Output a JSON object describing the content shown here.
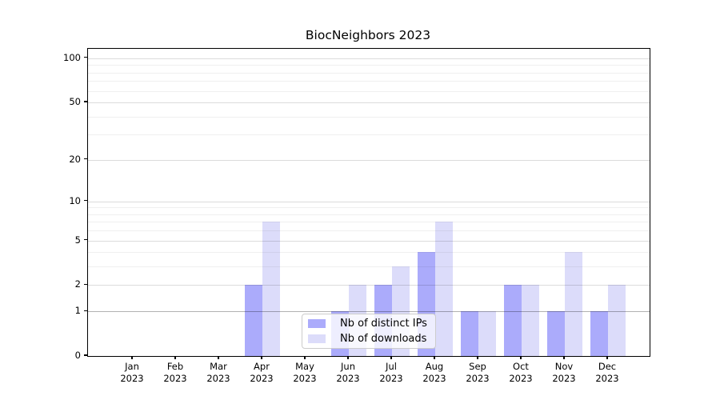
{
  "title": "BiocNeighbors 2023",
  "chart_data": {
    "type": "bar",
    "title": "BiocNeighbors 2023",
    "scale": "log1p",
    "categories": [
      "Jan 2023",
      "Feb 2023",
      "Mar 2023",
      "Apr 2023",
      "May 2023",
      "Jun 2023",
      "Jul 2023",
      "Aug 2023",
      "Sep 2023",
      "Oct 2023",
      "Nov 2023",
      "Dec 2023"
    ],
    "x_tick_line1": [
      "Jan",
      "Feb",
      "Mar",
      "Apr",
      "May",
      "Jun",
      "Jul",
      "Aug",
      "Sep",
      "Oct",
      "Nov",
      "Dec"
    ],
    "x_tick_line2": [
      "2023",
      "2023",
      "2023",
      "2023",
      "2023",
      "2023",
      "2023",
      "2023",
      "2023",
      "2023",
      "2023",
      "2023"
    ],
    "series": [
      {
        "name": "Nb of distinct IPs",
        "color": "#ababfb",
        "values": [
          0,
          0,
          0,
          2,
          0,
          1,
          2,
          4,
          1,
          2,
          1,
          1
        ]
      },
      {
        "name": "Nb of downloads",
        "color": "#dcdcfa",
        "values": [
          0,
          0,
          0,
          7,
          0,
          2,
          3,
          7,
          1,
          2,
          4,
          2
        ]
      }
    ],
    "ylim": [
      0,
      116
    ],
    "y_major_ticks": [
      0,
      1,
      2,
      5,
      10,
      20,
      50,
      100
    ],
    "y_tick_labels": [
      "0",
      "1",
      "2",
      "5",
      "10",
      "20",
      "50",
      "100"
    ],
    "y_minor_ticks": [
      3,
      4,
      6,
      7,
      8,
      9,
      30,
      40,
      60,
      70,
      80,
      90
    ],
    "grid": "on",
    "legend_position": "lower center",
    "xlabel": "",
    "ylabel": ""
  },
  "legend": {
    "items": [
      {
        "label": "Nb of distinct IPs",
        "color": "#ababfb"
      },
      {
        "label": "Nb of downloads",
        "color": "#dcdcfa"
      }
    ]
  },
  "colors": {
    "bar_distinct_ips": "#ababfb",
    "bar_downloads": "#dcdcfa",
    "axis": "#000000",
    "grid_major": "#dadada",
    "grid_minor": "#efefef",
    "background": "#ffffff"
  }
}
